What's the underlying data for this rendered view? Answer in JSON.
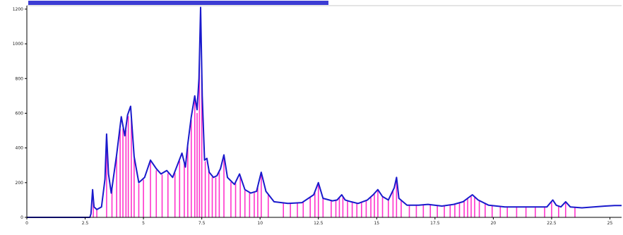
{
  "chart_data": {
    "type": "line",
    "title": "",
    "xlabel": "",
    "ylabel": "",
    "xlim": [
      0,
      25.5
    ],
    "ylim": [
      0,
      1220
    ],
    "grid": false,
    "legend": "none",
    "xticks": [
      0,
      2.5,
      5,
      7.5,
      10,
      12.5,
      15,
      17.5,
      20,
      22.5,
      25
    ],
    "yticks": [
      0,
      200,
      400,
      600,
      800,
      1000,
      1200
    ],
    "colors": {
      "trace": "#1a1acc",
      "peaks": "#ff33cc",
      "axis": "#000000"
    },
    "series": [
      {
        "values": [
          [
            0,
            0
          ],
          [
            2.7,
            0
          ],
          [
            2.75,
            20
          ],
          [
            2.82,
            160
          ],
          [
            2.88,
            60
          ],
          [
            3.0,
            45
          ],
          [
            3.2,
            60
          ],
          [
            3.35,
            220
          ],
          [
            3.42,
            480
          ],
          [
            3.5,
            250
          ],
          [
            3.62,
            140
          ],
          [
            3.85,
            360
          ],
          [
            4.05,
            580
          ],
          [
            4.2,
            470
          ],
          [
            4.32,
            590
          ],
          [
            4.45,
            640
          ],
          [
            4.6,
            350
          ],
          [
            4.8,
            200
          ],
          [
            5.05,
            230
          ],
          [
            5.3,
            330
          ],
          [
            5.55,
            280
          ],
          [
            5.75,
            250
          ],
          [
            6.0,
            270
          ],
          [
            6.25,
            230
          ],
          [
            6.45,
            300
          ],
          [
            6.65,
            370
          ],
          [
            6.8,
            290
          ],
          [
            6.9,
            420
          ],
          [
            7.05,
            580
          ],
          [
            7.2,
            700
          ],
          [
            7.3,
            620
          ],
          [
            7.38,
            800
          ],
          [
            7.45,
            1210
          ],
          [
            7.52,
            700
          ],
          [
            7.62,
            330
          ],
          [
            7.72,
            340
          ],
          [
            7.82,
            260
          ],
          [
            8.0,
            230
          ],
          [
            8.15,
            240
          ],
          [
            8.3,
            280
          ],
          [
            8.45,
            360
          ],
          [
            8.6,
            230
          ],
          [
            8.9,
            190
          ],
          [
            9.12,
            250
          ],
          [
            9.35,
            160
          ],
          [
            9.6,
            140
          ],
          [
            9.85,
            150
          ],
          [
            10.05,
            260
          ],
          [
            10.25,
            150
          ],
          [
            10.6,
            90
          ],
          [
            11.2,
            80
          ],
          [
            11.8,
            85
          ],
          [
            12.3,
            130
          ],
          [
            12.5,
            200
          ],
          [
            12.7,
            110
          ],
          [
            13.1,
            95
          ],
          [
            13.3,
            100
          ],
          [
            13.5,
            130
          ],
          [
            13.65,
            100
          ],
          [
            13.9,
            90
          ],
          [
            14.2,
            80
          ],
          [
            14.6,
            100
          ],
          [
            14.85,
            130
          ],
          [
            15.05,
            160
          ],
          [
            15.25,
            120
          ],
          [
            15.5,
            100
          ],
          [
            15.75,
            170
          ],
          [
            15.85,
            230
          ],
          [
            15.95,
            110
          ],
          [
            16.3,
            70
          ],
          [
            16.8,
            70
          ],
          [
            17.2,
            75
          ],
          [
            17.8,
            65
          ],
          [
            18.3,
            75
          ],
          [
            18.7,
            90
          ],
          [
            19.1,
            130
          ],
          [
            19.35,
            100
          ],
          [
            19.8,
            70
          ],
          [
            20.5,
            60
          ],
          [
            21.2,
            60
          ],
          [
            21.8,
            60
          ],
          [
            22.3,
            60
          ],
          [
            22.55,
            100
          ],
          [
            22.7,
            70
          ],
          [
            22.9,
            60
          ],
          [
            23.1,
            90
          ],
          [
            23.3,
            60
          ],
          [
            23.8,
            55
          ],
          [
            24.3,
            60
          ],
          [
            24.8,
            65
          ],
          [
            25.2,
            68
          ],
          [
            25.5,
            68
          ]
        ]
      }
    ],
    "peaks_x": [
      2.85,
      3.0,
      3.42,
      3.65,
      3.85,
      4.0,
      4.12,
      4.25,
      4.35,
      4.48,
      4.6,
      4.8,
      5.0,
      5.3,
      5.55,
      5.8,
      6.05,
      6.35,
      6.55,
      6.75,
      6.9,
      7.05,
      7.2,
      7.3,
      7.4,
      7.5,
      7.65,
      7.8,
      7.95,
      8.1,
      8.25,
      8.45,
      8.75,
      8.95,
      9.15,
      9.35,
      9.55,
      9.75,
      9.9,
      10.05,
      10.35,
      11.0,
      11.3,
      11.6,
      11.85,
      12.15,
      12.35,
      12.5,
      12.7,
      13.05,
      13.25,
      13.4,
      13.55,
      13.75,
      13.95,
      14.15,
      14.35,
      14.55,
      14.75,
      14.9,
      15.05,
      15.25,
      15.5,
      15.7,
      15.85,
      16.05,
      16.4,
      16.7,
      17.0,
      17.3,
      17.6,
      17.9,
      18.15,
      18.35,
      18.55,
      18.75,
      18.9,
      19.05,
      19.2,
      19.4,
      19.65,
      19.95,
      20.3,
      20.6,
      21.0,
      21.4,
      21.8,
      22.2,
      22.5,
      22.8,
      23.1,
      23.5
    ]
  }
}
